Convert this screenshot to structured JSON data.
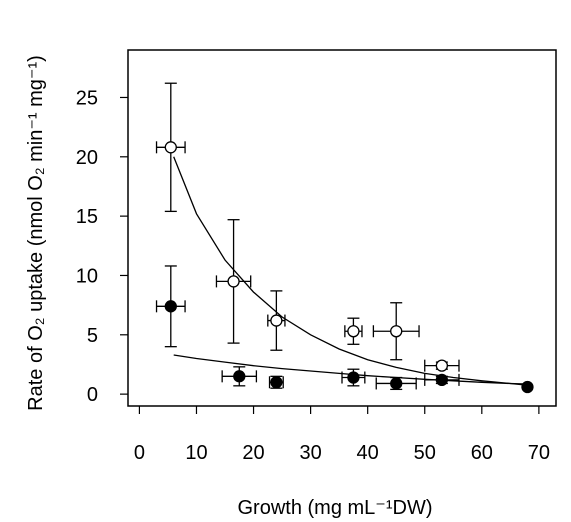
{
  "chart_data": {
    "type": "scatter",
    "title": "",
    "xlabel": "Growth (mg mL⁻¹DW)",
    "ylabel": "Rate of O₂ uptake (nmol O₂ min⁻¹ mg⁻¹)",
    "xlim": [
      -2,
      73
    ],
    "ylim": [
      -1,
      29
    ],
    "xticks": [
      0,
      10,
      20,
      30,
      40,
      50,
      60,
      70
    ],
    "yticks": [
      0,
      5,
      10,
      15,
      20,
      25
    ],
    "grid": false,
    "legend": "none",
    "series": [
      {
        "marker": "open-circle",
        "points": [
          {
            "x": 5.5,
            "y": 20.8,
            "xerr": 2.5,
            "yerr": 5.4
          },
          {
            "x": 16.5,
            "y": 9.5,
            "xerr": 3.0,
            "yerr": 5.2
          },
          {
            "x": 24.0,
            "y": 6.2,
            "xerr": 1.5,
            "yerr": 2.5
          },
          {
            "x": 37.5,
            "y": 5.3,
            "xerr": 1.5,
            "yerr": 1.1
          },
          {
            "x": 45.0,
            "y": 5.3,
            "xerr": 4.0,
            "yerr": 2.4
          },
          {
            "x": 53.0,
            "y": 2.4,
            "xerr": 3.0,
            "yerr": 0.3
          }
        ],
        "fit_curve": [
          [
            6,
            20
          ],
          [
            10,
            15.2
          ],
          [
            15,
            11.3
          ],
          [
            20,
            8.6
          ],
          [
            25,
            6.5
          ],
          [
            30,
            5.0
          ],
          [
            35,
            3.8
          ],
          [
            40,
            2.9
          ],
          [
            45,
            2.25
          ],
          [
            50,
            1.75
          ],
          [
            55,
            1.4
          ],
          [
            60,
            1.12
          ],
          [
            65,
            0.9
          ],
          [
            68,
            0.75
          ]
        ]
      },
      {
        "marker": "filled-circle",
        "points": [
          {
            "x": 5.5,
            "y": 7.4,
            "xerr": 2.5,
            "yerr": 3.4
          },
          {
            "x": 17.5,
            "y": 1.5,
            "xerr": 3.0,
            "yerr": 0.8
          },
          {
            "x": 24.0,
            "y": 1.0,
            "xerr": 1.2,
            "yerr": 0.5
          },
          {
            "x": 37.5,
            "y": 1.4,
            "xerr": 2.0,
            "yerr": 0.7
          },
          {
            "x": 45.0,
            "y": 0.9,
            "xerr": 3.5,
            "yerr": 0.5
          },
          {
            "x": 53.0,
            "y": 1.2,
            "xerr": 3.0,
            "yerr": 0.3
          },
          {
            "x": 68.0,
            "y": 0.6,
            "xerr": 0,
            "yerr": 0
          }
        ],
        "fit_curve": [
          [
            6,
            3.3
          ],
          [
            10,
            3.0
          ],
          [
            15,
            2.7
          ],
          [
            20,
            2.4
          ],
          [
            25,
            2.15
          ],
          [
            30,
            1.95
          ],
          [
            35,
            1.75
          ],
          [
            40,
            1.55
          ],
          [
            45,
            1.4
          ],
          [
            50,
            1.25
          ],
          [
            55,
            1.12
          ],
          [
            60,
            1.0
          ],
          [
            65,
            0.9
          ],
          [
            68,
            0.85
          ]
        ]
      }
    ]
  }
}
